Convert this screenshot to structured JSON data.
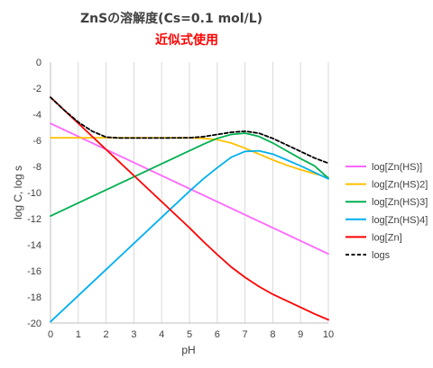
{
  "chart_data": {
    "type": "line",
    "title": "ZnSの溶解度(Cs=0.1 mol/L)",
    "subtitle": "近似式使用",
    "xlabel": "pH",
    "ylabel": "log C, log s",
    "xlim": [
      0,
      10
    ],
    "ylim": [
      -20,
      0
    ],
    "xticks": [
      0,
      1,
      2,
      3,
      4,
      5,
      6,
      7,
      8,
      9,
      10
    ],
    "yticks": [
      0,
      -2,
      -4,
      -6,
      -8,
      -10,
      -12,
      -14,
      -16,
      -18,
      -20
    ],
    "grid": "vertical-major",
    "legend_position": "right",
    "series": [
      {
        "name": "log[Zn(HS)]",
        "color": "#ff66ff",
        "dash": "solid",
        "x": [
          0,
          1,
          2,
          3,
          4,
          5,
          6,
          7,
          8,
          9,
          10
        ],
        "y": [
          -4.7,
          -5.7,
          -6.7,
          -7.7,
          -8.7,
          -9.7,
          -10.7,
          -11.7,
          -12.7,
          -13.7,
          -14.7
        ]
      },
      {
        "name": "log[Zn(HS)2]",
        "color": "#ffc000",
        "dash": "solid",
        "x": [
          0,
          1,
          2,
          3,
          4,
          5,
          5.5,
          6,
          6.5,
          7,
          7.5,
          8,
          8.5,
          9,
          9.5,
          10
        ],
        "y": [
          -5.8,
          -5.8,
          -5.8,
          -5.8,
          -5.8,
          -5.8,
          -5.85,
          -5.95,
          -6.2,
          -6.6,
          -7.05,
          -7.5,
          -7.9,
          -8.25,
          -8.55,
          -8.85
        ]
      },
      {
        "name": "log[Zn(HS)3]",
        "color": "#00b050",
        "dash": "solid",
        "x": [
          0,
          1,
          2,
          3,
          4,
          5,
          5.5,
          6,
          6.5,
          7,
          7.5,
          8,
          8.5,
          9,
          9.5,
          10
        ],
        "y": [
          -11.8,
          -10.8,
          -9.8,
          -8.8,
          -7.8,
          -6.8,
          -6.3,
          -5.85,
          -5.55,
          -5.45,
          -5.7,
          -6.2,
          -6.8,
          -7.4,
          -7.95,
          -8.9
        ]
      },
      {
        "name": "log[Zn(HS)4]",
        "color": "#00b0f0",
        "dash": "solid",
        "x": [
          0,
          1,
          2,
          3,
          4,
          5,
          5.5,
          6,
          6.5,
          7,
          7.5,
          8,
          8.5,
          9,
          9.5,
          10
        ],
        "y": [
          -19.9,
          -17.9,
          -15.9,
          -13.9,
          -11.9,
          -9.9,
          -8.95,
          -8.1,
          -7.3,
          -6.85,
          -6.8,
          -7.05,
          -7.5,
          -7.95,
          -8.45,
          -8.95
        ]
      },
      {
        "name": "log[Zn]",
        "color": "#ff0000",
        "dash": "solid",
        "x": [
          0,
          1,
          2,
          3,
          4,
          5,
          5.5,
          6,
          6.5,
          7,
          7.5,
          8,
          8.5,
          9,
          9.5,
          10
        ],
        "y": [
          -2.7,
          -4.7,
          -6.7,
          -8.7,
          -10.7,
          -12.7,
          -13.75,
          -14.75,
          -15.7,
          -16.5,
          -17.2,
          -17.8,
          -18.3,
          -18.8,
          -19.3,
          -19.75
        ]
      },
      {
        "name": "logs",
        "color": "#000000",
        "dash": "dashed",
        "x": [
          0,
          0.5,
          1,
          1.5,
          2,
          2.5,
          3,
          4,
          5,
          5.5,
          6,
          6.5,
          7,
          7.5,
          8,
          8.5,
          9,
          9.5,
          10
        ],
        "y": [
          -2.7,
          -3.7,
          -4.6,
          -5.3,
          -5.75,
          -5.82,
          -5.82,
          -5.82,
          -5.8,
          -5.72,
          -5.55,
          -5.38,
          -5.3,
          -5.45,
          -5.85,
          -6.35,
          -6.85,
          -7.35,
          -7.75
        ]
      }
    ]
  }
}
